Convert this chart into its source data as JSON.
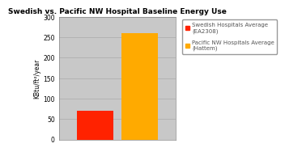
{
  "title": "Swedish vs. Pacific NW Hospital Baseline Energy Use",
  "values": [
    70,
    261
  ],
  "bar_colors": [
    "#ff2200",
    "#ffaa00"
  ],
  "ylabel": "KBtu/ft²/year",
  "ylim": [
    0,
    300
  ],
  "yticks": [
    0,
    50,
    100,
    150,
    200,
    250,
    300
  ],
  "legend_labels": [
    "Swedish Hospitals Average\n(EA2308)",
    "Pacific NW Hospitals Average\n(Hattem)"
  ],
  "legend_colors": [
    "#ff2200",
    "#ffaa00"
  ],
  "outer_bg_color": "#ffffff",
  "plot_bg_color": "#c8c8c8",
  "title_fontsize": 6.5,
  "axis_fontsize": 5.5,
  "legend_fontsize": 5.0,
  "bar_width": 0.28,
  "x_positions": [
    0.28,
    0.62
  ]
}
